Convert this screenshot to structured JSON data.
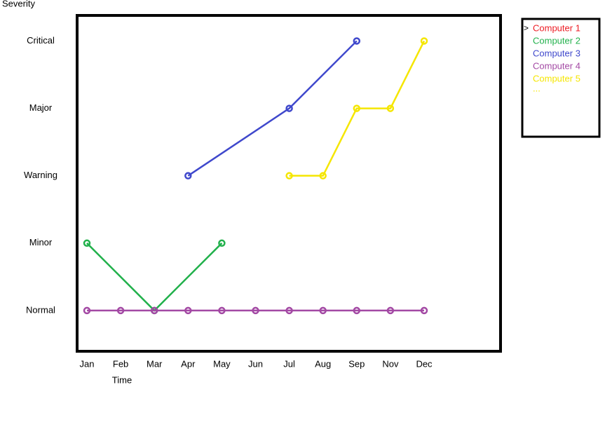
{
  "chart_data": {
    "type": "line",
    "y_label": "Severity",
    "x_label": "Time",
    "categories": [
      "Jan",
      "Feb",
      "Mar",
      "Apr",
      "May",
      "Jun",
      "Jul",
      "Aug",
      "Sep",
      "Nov",
      "Dec"
    ],
    "ylim": [
      -0.625,
      4.4
    ],
    "yticks": [
      {
        "value": 0,
        "label": "Normal"
      },
      {
        "value": 1,
        "label": "Minor"
      },
      {
        "value": 2,
        "label": "Warning"
      },
      {
        "value": 3,
        "label": "Major"
      },
      {
        "value": 4,
        "label": "Critical"
      }
    ],
    "legend_marker": ">",
    "legend_more": {
      "label": "...",
      "color": "#f5e600"
    },
    "series": [
      {
        "name": "Computer 1",
        "color": "#ed1c24",
        "x": [],
        "values": []
      },
      {
        "name": "Computer 2",
        "color": "#22b14c",
        "x": [
          "Jan",
          "Mar",
          "May"
        ],
        "values": [
          1,
          0,
          1
        ]
      },
      {
        "name": "Computer 3",
        "color": "#3f48cc",
        "x": [
          "Apr",
          "Jul",
          "Sep"
        ],
        "values": [
          2,
          3,
          4
        ]
      },
      {
        "name": "Computer 4",
        "color": "#a349a4",
        "x": [
          "Jan",
          "Feb",
          "Mar",
          "Apr",
          "May",
          "Jun",
          "Jul",
          "Aug",
          "Sep",
          "Nov",
          "Dec"
        ],
        "values": [
          0,
          0,
          0,
          0,
          0,
          0,
          0,
          0,
          0,
          0,
          0
        ]
      },
      {
        "name": "Computer 5",
        "color": "#f5e600",
        "x": [
          "Jul",
          "Aug",
          "Sep",
          "Nov",
          "Dec"
        ],
        "values": [
          2,
          2,
          3,
          3,
          4
        ]
      }
    ]
  }
}
